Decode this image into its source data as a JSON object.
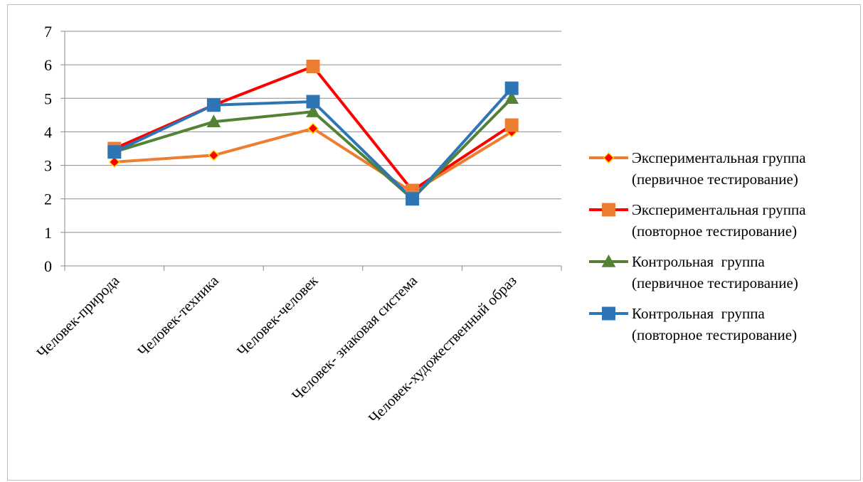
{
  "chart_data": {
    "type": "line",
    "title": "",
    "xlabel": "",
    "ylabel": "",
    "ylim": [
      0,
      7
    ],
    "yticks": [
      0,
      1,
      2,
      3,
      4,
      5,
      6,
      7
    ],
    "grid": true,
    "legend_position": "right",
    "categories": [
      "Человек-природа",
      "Человек-техника",
      "Человек-человек",
      "Человек- знаковая система",
      "Человек-художественный образ"
    ],
    "series": [
      {
        "name_lines": [
          "Экспериментальная группа",
          "(первичное тестирование)"
        ],
        "values": [
          3.1,
          3.3,
          4.1,
          2.2,
          4.0
        ],
        "color": "#ED7D31",
        "marker": "diamond",
        "marker_fill": "#FF0000",
        "marker_stroke": "#FFD700"
      },
      {
        "name_lines": [
          "Экспериментальная группа",
          "(повторное тестирование)"
        ],
        "values": [
          3.5,
          4.8,
          5.95,
          2.25,
          4.2
        ],
        "color": "#FF0000",
        "marker": "square",
        "marker_fill": "#ED7D31",
        "marker_stroke": "#ED7D31"
      },
      {
        "name_lines": [
          "Контрольная  группа",
          "(первичное тестирование)"
        ],
        "values": [
          3.4,
          4.3,
          4.6,
          2.0,
          5.0
        ],
        "color": "#548235",
        "marker": "triangle",
        "marker_fill": "#548235",
        "marker_stroke": "#548235"
      },
      {
        "name_lines": [
          "Контрольная  группа",
          "(повторное тестирование)"
        ],
        "values": [
          3.4,
          4.8,
          4.9,
          2.0,
          5.3
        ],
        "color": "#2E75B6",
        "marker": "square",
        "marker_fill": "#2E75B6",
        "marker_stroke": "#2E75B6"
      }
    ]
  }
}
